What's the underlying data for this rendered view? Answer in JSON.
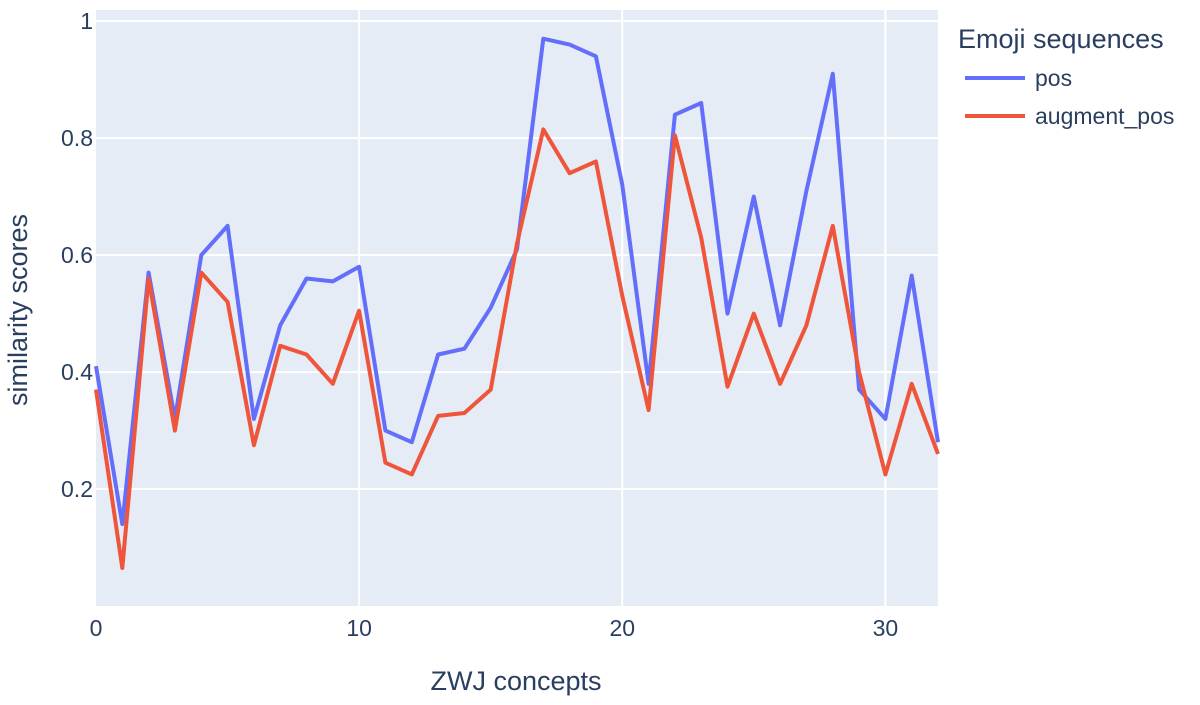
{
  "chart_data": {
    "type": "line",
    "title": "",
    "xlabel": "ZWJ concepts",
    "ylabel": "similarity scores",
    "xlim": [
      0,
      32
    ],
    "ylim": [
      0.0,
      1.0
    ],
    "x_ticks": [
      0,
      10,
      20,
      30
    ],
    "y_ticks": [
      0.2,
      0.4,
      0.6,
      0.8,
      1
    ],
    "y_tick_labels": [
      "0.2",
      "0.4",
      "0.6",
      "0.8",
      "1"
    ],
    "x_tick_labels": [
      "0",
      "10",
      "20",
      "30"
    ],
    "grid": true,
    "legend": {
      "title": "Emoji sequences",
      "position": "right"
    },
    "colors": {
      "plot_bg": "#e5ecf6",
      "grid": "#ffffff",
      "text": "#2a3f5f"
    },
    "series": [
      {
        "name": "pos",
        "color": "#636efa",
        "x": [
          0,
          1,
          2,
          3,
          4,
          5,
          6,
          7,
          8,
          9,
          10,
          11,
          12,
          13,
          14,
          15,
          16,
          17,
          18,
          19,
          20,
          21,
          22,
          23,
          24,
          25,
          26,
          27,
          28,
          29,
          30,
          31,
          32
        ],
        "values": [
          0.41,
          0.14,
          0.57,
          0.32,
          0.6,
          0.65,
          0.32,
          0.48,
          0.56,
          0.555,
          0.58,
          0.3,
          0.28,
          0.43,
          0.44,
          0.51,
          0.61,
          0.97,
          0.96,
          0.94,
          0.72,
          0.38,
          0.84,
          0.86,
          0.5,
          0.7,
          0.48,
          0.71,
          0.91,
          0.37,
          0.32,
          0.565,
          0.28
        ]
      },
      {
        "name": "augment_pos",
        "color": "#ef553b",
        "x": [
          0,
          1,
          2,
          3,
          4,
          5,
          6,
          7,
          8,
          9,
          10,
          11,
          12,
          13,
          14,
          15,
          16,
          17,
          18,
          19,
          20,
          21,
          22,
          23,
          24,
          25,
          26,
          27,
          28,
          29,
          30,
          31,
          32
        ],
        "values": [
          0.37,
          0.065,
          0.56,
          0.3,
          0.57,
          0.52,
          0.275,
          0.445,
          0.43,
          0.38,
          0.505,
          0.245,
          0.225,
          0.325,
          0.33,
          0.37,
          0.62,
          0.815,
          0.74,
          0.76,
          0.53,
          0.335,
          0.805,
          0.63,
          0.375,
          0.5,
          0.38,
          0.48,
          0.65,
          0.4,
          0.225,
          0.38,
          0.26
        ]
      }
    ]
  }
}
